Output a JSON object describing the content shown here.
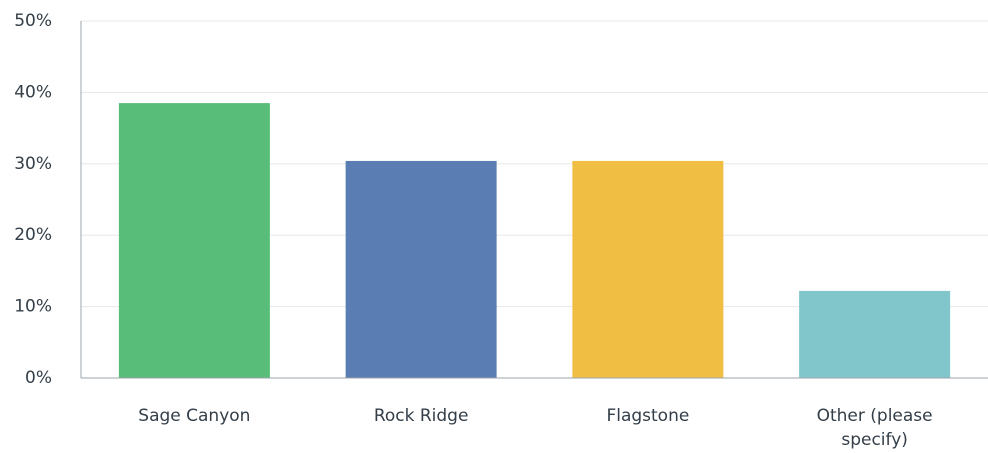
{
  "chart_data": {
    "type": "bar",
    "categories": [
      "Sage Canyon",
      "Rock Ridge",
      "Flagstone",
      "Other (please specify)"
    ],
    "category_lines": [
      [
        "Sage Canyon"
      ],
      [
        "Rock Ridge"
      ],
      [
        "Flagstone"
      ],
      [
        "Other (please",
        "specify)"
      ]
    ],
    "values": [
      38.5,
      30.4,
      30.4,
      12.2
    ],
    "colors": [
      "#57bd78",
      "#5a7db3",
      "#f0be43",
      "#80c6cb"
    ],
    "y_ticks": [
      "0%",
      "10%",
      "20%",
      "30%",
      "40%",
      "50%"
    ],
    "ylim": [
      0,
      50
    ],
    "grid": true,
    "title": "",
    "xlabel": "",
    "ylabel": ""
  }
}
